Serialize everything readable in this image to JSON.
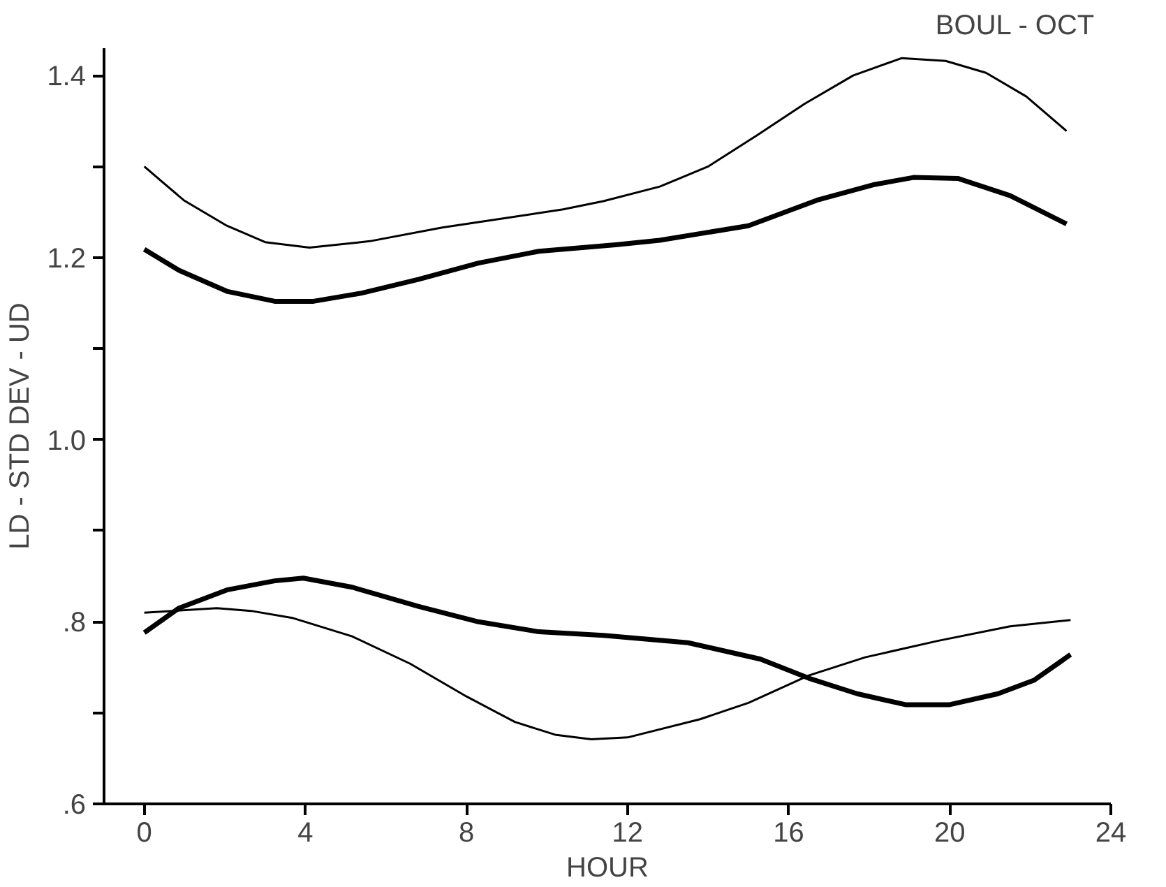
{
  "chart_data": {
    "type": "line",
    "title": "BOUL  -  OCT",
    "xlabel": "HOUR",
    "ylabel": "LD - STD DEV - UD",
    "xlim": [
      -1,
      24
    ],
    "xticks": [
      0,
      4,
      8,
      12,
      16,
      20,
      24
    ],
    "ylim": [
      0.6,
      1.43
    ],
    "yticks": [
      {
        "value": 0.6,
        "label": ".6"
      },
      {
        "value": 0.7,
        "label": null
      },
      {
        "value": 0.8,
        "label": ".8"
      },
      {
        "value": 0.9,
        "label": null
      },
      {
        "value": 1.0,
        "label": "1.0"
      },
      {
        "value": 1.1,
        "label": null
      },
      {
        "value": 1.2,
        "label": "1.2"
      },
      {
        "value": 1.3,
        "label": null
      },
      {
        "value": 1.4,
        "label": "1.4"
      }
    ],
    "grid": false,
    "marker": "none",
    "line_style": "solid",
    "series": [
      {
        "color": "#000000",
        "x": [
          0,
          0.98,
          2.05,
          3.0,
          4.1,
          5.6,
          7.4,
          9.2,
          10.4,
          11.4,
          12.8,
          14.0,
          15.2,
          16.4,
          17.6,
          18.8,
          19.9,
          20.9,
          21.9,
          22.9
        ],
        "values": [
          1.3,
          1.263,
          1.235,
          1.217,
          1.211,
          1.218,
          1.233,
          1.245,
          1.253,
          1.262,
          1.278,
          1.3,
          1.334,
          1.369,
          1.4,
          1.419,
          1.416,
          1.403,
          1.377,
          1.339
        ]
      },
      {
        "color": "#000000",
        "x": [
          0,
          0.86,
          2.05,
          3.24,
          4.2,
          5.4,
          6.8,
          8.3,
          9.8,
          11.7,
          12.8,
          15.0,
          16.7,
          18.1,
          19.1,
          20.2,
          21.5,
          22.9
        ],
        "values": [
          1.209,
          1.186,
          1.163,
          1.152,
          1.152,
          1.161,
          1.176,
          1.194,
          1.207,
          1.214,
          1.219,
          1.235,
          1.263,
          1.28,
          1.288,
          1.287,
          1.268,
          1.237
        ]
      },
      {
        "color": "#000000",
        "x": [
          0,
          1.8,
          2.65,
          3.7,
          5.16,
          6.6,
          8.0,
          9.2,
          10.2,
          11.1,
          12.0,
          13.8,
          15.0,
          16.5,
          17.9,
          19.7,
          21.5,
          23.0
        ],
        "values": [
          0.81,
          0.815,
          0.812,
          0.804,
          0.784,
          0.754,
          0.718,
          0.69,
          0.676,
          0.671,
          0.673,
          0.693,
          0.711,
          0.741,
          0.761,
          0.779,
          0.795,
          0.802
        ]
      },
      {
        "color": "#000000",
        "x": [
          0,
          0.86,
          2.05,
          3.24,
          3.95,
          5.16,
          6.8,
          8.3,
          9.8,
          11.4,
          13.5,
          15.3,
          16.5,
          17.7,
          18.9,
          20.0,
          21.2,
          22.1,
          23.0
        ],
        "values": [
          0.788,
          0.815,
          0.835,
          0.845,
          0.848,
          0.838,
          0.817,
          0.8,
          0.789,
          0.785,
          0.777,
          0.759,
          0.738,
          0.721,
          0.709,
          0.709,
          0.721,
          0.736,
          0.764
        ]
      }
    ]
  }
}
